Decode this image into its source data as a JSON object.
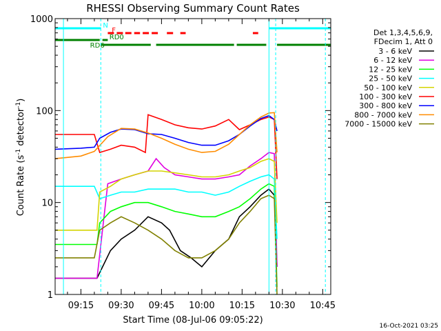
{
  "chart_data": {
    "type": "line",
    "title": "RHESSI Observing Summary Count Rates",
    "xlabel": "Start Time (08-Jul-06 09:05:22)",
    "ylabel_main": "Count Rate (s",
    "ylabel_sup1": "-1",
    "ylabel_mid": " detector",
    "ylabel_sup2": "-1",
    "ylabel_end": ")",
    "yscale": "log",
    "ylim": [
      1,
      1000
    ],
    "xlim_minutes": [
      545.4,
      648.0
    ],
    "x_ticks": [
      {
        "t": 555,
        "label": "09:15"
      },
      {
        "t": 570,
        "label": "09:30"
      },
      {
        "t": 585,
        "label": "09:45"
      },
      {
        "t": 600,
        "label": "10:00"
      },
      {
        "t": 615,
        "label": "10:15"
      },
      {
        "t": 630,
        "label": "10:30"
      },
      {
        "t": 645,
        "label": "10:45"
      }
    ],
    "y_ticks": [
      {
        "v": 1,
        "label": "1"
      },
      {
        "v": 10,
        "label": "10"
      },
      {
        "v": 100,
        "label": "100"
      },
      {
        "v": 1000,
        "label": "1000"
      }
    ],
    "legend_header": [
      "Det 1,3,4,5,6,9,",
      "FDecim 1, Att 0"
    ],
    "series": [
      {
        "name": "3 - 6 keV",
        "color": "#000000",
        "x": [
          545.4,
          555,
          561,
          566,
          570,
          575,
          580,
          585,
          588,
          592,
          596,
          600,
          605,
          610,
          614,
          618,
          622,
          625,
          627,
          628
        ],
        "y": [
          1.5,
          1.5,
          1.5,
          3,
          4,
          5,
          7,
          6,
          5,
          3,
          2.5,
          2,
          3,
          4,
          7,
          9,
          12,
          14,
          12,
          2
        ]
      },
      {
        "name": "6 - 12 keV",
        "color": "#e000e0",
        "x": [
          545.4,
          561,
          565,
          570,
          575,
          580,
          583,
          586,
          590,
          595,
          600,
          605,
          610,
          614,
          618,
          622,
          625,
          627,
          628
        ],
        "y": [
          1.5,
          1.5,
          16,
          18,
          20,
          22,
          30,
          24,
          20,
          19,
          18,
          18,
          19,
          20,
          25,
          30,
          35,
          34,
          2
        ]
      },
      {
        "name": "12 - 25 keV",
        "color": "#00ff00",
        "x": [
          545.4,
          561,
          562,
          566,
          570,
          575,
          580,
          585,
          590,
          595,
          600,
          605,
          610,
          614,
          618,
          622,
          625,
          627,
          628
        ],
        "y": [
          3.5,
          3.5,
          6,
          8,
          9,
          10,
          10,
          9,
          8,
          7.5,
          7,
          7,
          8,
          9,
          11,
          14,
          16,
          15,
          1.2
        ]
      },
      {
        "name": "25 - 50 keV",
        "color": "#00ffff",
        "x": [
          545.4,
          560,
          562,
          566,
          570,
          575,
          580,
          585,
          590,
          595,
          600,
          605,
          610,
          614,
          618,
          622,
          625,
          627,
          628
        ],
        "y": [
          15,
          15,
          11,
          12,
          13,
          13,
          14,
          14,
          14,
          13,
          13,
          12,
          13,
          15,
          17,
          19,
          20,
          18,
          4
        ]
      },
      {
        "name": "50 - 100 keV",
        "color": "#d4d400",
        "x": [
          545.4,
          561,
          562,
          566,
          570,
          575,
          580,
          585,
          590,
          595,
          600,
          605,
          610,
          614,
          618,
          622,
          625,
          627,
          628
        ],
        "y": [
          5,
          5,
          13,
          15,
          18,
          20,
          22,
          22,
          21,
          20,
          19,
          19,
          20,
          22,
          24,
          28,
          30,
          28,
          6
        ]
      },
      {
        "name": "100 - 300 keV",
        "color": "#ff0000",
        "x": [
          545.4,
          560,
          562,
          566,
          570,
          575,
          579,
          580,
          585,
          590,
          595,
          600,
          605,
          610,
          614,
          618,
          622,
          625,
          627,
          628
        ],
        "y": [
          55,
          55,
          35,
          38,
          42,
          40,
          35,
          90,
          80,
          70,
          65,
          63,
          68,
          80,
          62,
          70,
          80,
          85,
          80,
          18
        ]
      },
      {
        "name": "300 - 800 keV",
        "color": "#0000ff",
        "x": [
          545.4,
          555,
          560,
          562,
          566,
          570,
          575,
          580,
          585,
          590,
          595,
          600,
          605,
          610,
          614,
          618,
          622,
          625,
          627,
          628
        ],
        "y": [
          38,
          39,
          40,
          50,
          58,
          63,
          62,
          56,
          55,
          50,
          45,
          42,
          42,
          47,
          55,
          68,
          82,
          88,
          80,
          60
        ]
      },
      {
        "name": "800 - 7000 keV",
        "color": "#ff8c00",
        "x": [
          545.4,
          555,
          560,
          565,
          570,
          575,
          580,
          585,
          590,
          595,
          600,
          605,
          610,
          614,
          618,
          622,
          625,
          627,
          628
        ],
        "y": [
          30,
          32,
          36,
          52,
          64,
          63,
          57,
          50,
          43,
          38,
          35,
          36,
          43,
          55,
          70,
          85,
          94,
          95,
          35
        ]
      },
      {
        "name": "7000 - 15000 keV",
        "color": "#808000",
        "x": [
          545.4,
          555,
          560,
          562,
          566,
          570,
          575,
          580,
          585,
          590,
          595,
          600,
          605,
          610,
          614,
          618,
          622,
          625,
          627,
          628
        ],
        "y": [
          2.5,
          2.5,
          2.5,
          5,
          6,
          7,
          6,
          5,
          4,
          3,
          2.5,
          2.5,
          3,
          4,
          6,
          8,
          11,
          12,
          11,
          1
        ]
      }
    ],
    "vertical_lines": [
      {
        "t": 548.5,
        "color": "#00ffff",
        "style": "solid"
      },
      {
        "t": 562.4,
        "color": "#00ffff",
        "style": "dashed"
      },
      {
        "t": 625.0,
        "color": "#00ffff",
        "style": "solid"
      },
      {
        "t": 627.5,
        "color": "#00ffff",
        "style": "dashed"
      },
      {
        "t": 646.0,
        "color": "#00ffff",
        "style": "dashed"
      }
    ],
    "flags": [
      {
        "label": "N",
        "color": "#00ffff",
        "segments": [
          [
            545.4,
            562.5
          ],
          [
            625.0,
            648.0
          ]
        ],
        "style": "solid",
        "label_t": 563.2
      },
      {
        "label": "F",
        "color": "#ff0000",
        "segments": [
          [
            565,
            571
          ],
          [
            571.5,
            577
          ],
          [
            578,
            584
          ],
          [
            587,
            590
          ],
          [
            592,
            594
          ],
          [
            619,
            621
          ]
        ],
        "style": "dashed",
        "label_t": 566.5
      },
      {
        "label": "RD0",
        "color": "#008000",
        "segments": [
          [
            545.4,
            562
          ],
          [
            563,
            565
          ]
        ],
        "style": "solid",
        "label_t": 565.6
      },
      {
        "label": "RD6",
        "color": "#008000",
        "segments": [
          [
            562.5,
            581
          ],
          [
            583,
            612
          ],
          [
            613,
            624
          ],
          [
            628,
            648
          ]
        ],
        "style": "solid",
        "label_t": 558.4
      }
    ],
    "footer": "16-Oct-2021 03:25"
  }
}
